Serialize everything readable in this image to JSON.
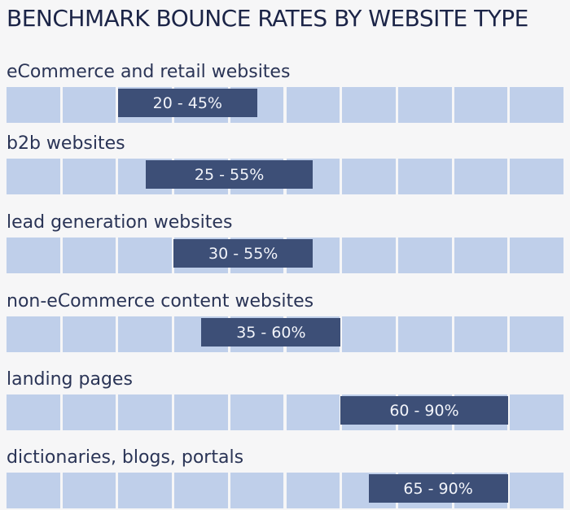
{
  "title": "BENCHMARK BOUNCE RATES BY WEBSITE TYPE",
  "colors": {
    "cell": "#bfcfea",
    "bar": "#3d4f77",
    "background": "#f6f6f7"
  },
  "chart_data": {
    "type": "bar",
    "title": "BENCHMARK BOUNCE RATES BY WEBSITE TYPE",
    "unit": "%",
    "xlim": [
      0,
      100
    ],
    "grid_cells": 10,
    "categories": [
      "eCommerce and retail websites",
      "b2b websites",
      "lead generation websites",
      "non-eCommerce content websites",
      "landing pages",
      "dictionaries, blogs, portals"
    ],
    "ranges": [
      {
        "low": 20,
        "high": 45,
        "label": "20 - 45%"
      },
      {
        "low": 25,
        "high": 55,
        "label": "25 - 55%"
      },
      {
        "low": 30,
        "high": 55,
        "label": "30 - 55%"
      },
      {
        "low": 35,
        "high": 60,
        "label": "35 - 60%"
      },
      {
        "low": 60,
        "high": 90,
        "label": "60 - 90%"
      },
      {
        "low": 65,
        "high": 90,
        "label": "65 - 90%"
      }
    ]
  }
}
